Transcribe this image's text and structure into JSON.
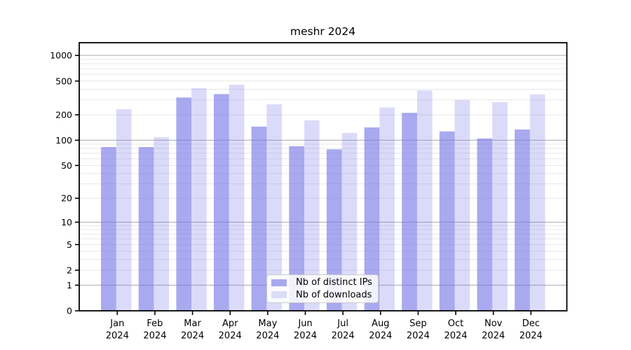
{
  "chart_data": {
    "type": "bar",
    "title": "meshr 2024",
    "categories": [
      "Jan",
      "Feb",
      "Mar",
      "Apr",
      "May",
      "Jun",
      "Jul",
      "Aug",
      "Sep",
      "Oct",
      "Nov",
      "Dec"
    ],
    "x_tick_year": "2024",
    "series": [
      {
        "name": "Nb of distinct IPs",
        "values": [
          83,
          83,
          320,
          351,
          145,
          85,
          78,
          142,
          211,
          127,
          105,
          134
        ],
        "fill": "rgba(116,116,230,0.62)",
        "legend_color": "#a8a8ef"
      },
      {
        "name": "Nb of downloads",
        "values": [
          233,
          109,
          411,
          453,
          266,
          172,
          122,
          244,
          389,
          298,
          282,
          347
        ],
        "fill": "rgba(116,116,230,0.26)",
        "legend_color": "#dcdcf9"
      }
    ],
    "yscale": "log1p",
    "ylim": [
      0,
      1380
    ],
    "y_ticks": [
      0,
      1,
      2,
      5,
      10,
      20,
      50,
      100,
      200,
      500,
      1000
    ],
    "y_tick_labels": [
      "0",
      "1",
      "2",
      "5",
      "10",
      "20",
      "50",
      "100",
      "200",
      "500",
      "1000"
    ],
    "y_major_grid": [
      1,
      10,
      100,
      1000
    ],
    "grid": true,
    "legend_position": "lower center"
  },
  "colors": {
    "background": "#ffffff",
    "spine": "#000000",
    "major_grid": "#b3b3b3",
    "minor_grid": "#e7e7e7",
    "tick": "#000000",
    "text": "#000000"
  }
}
